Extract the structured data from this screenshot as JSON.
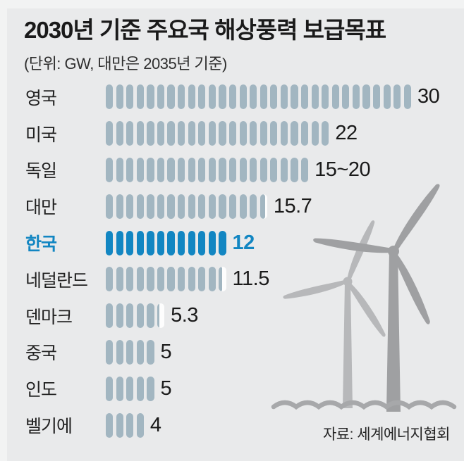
{
  "header": {
    "title": "2030년 기준 주요국 해상풍력 보급목표",
    "subtitle": "(단위: GW, 대만은 2035년 기준)"
  },
  "footer": {
    "source": "자료: 세계에너지협회"
  },
  "colors": {
    "background": "#e9eaeb",
    "frame": "#f2f3f3",
    "pill": "#a2b6c1",
    "accent": "#1286c2",
    "pill_remainder": "#fdfdfd",
    "text": "#1a1a1a",
    "turbine_front": "#9fa0a2",
    "turbine_back": "#b7b8ba",
    "water": "#a7a8aa"
  },
  "chart_data": {
    "type": "bar",
    "orientation": "horizontal",
    "style": "pictogram (1 pill = 1 GW)",
    "title": "2030년 기준 주요국 해상풍력 보급목표",
    "unit_note": "(단위: GW, 대만은 2035년 기준)",
    "source": "자료: 세계에너지협회",
    "unit": "GW",
    "categories": [
      "영국",
      "미국",
      "독일",
      "대만",
      "한국",
      "네덜란드",
      "덴마크",
      "중국",
      "인도",
      "벨기에"
    ],
    "values": [
      30,
      22,
      20,
      15.7,
      12,
      11.5,
      5.3,
      5,
      5,
      4
    ],
    "value_labels": [
      "30",
      "22",
      "15~20",
      "15.7",
      "12",
      "11.5",
      "5.3",
      "5",
      "5",
      "4"
    ],
    "highlight_category": "한국",
    "rows": [
      {
        "country": "영국",
        "value_label": "30",
        "pills_full": 30,
        "pill_fraction": 0,
        "highlight": false
      },
      {
        "country": "미국",
        "value_label": "22",
        "pills_full": 22,
        "pill_fraction": 0,
        "highlight": false
      },
      {
        "country": "독일",
        "value_label": "15~20",
        "pills_full": 20,
        "pill_fraction": 0,
        "highlight": false
      },
      {
        "country": "대만",
        "value_label": "15.7",
        "pills_full": 15,
        "pill_fraction": 0.7,
        "highlight": false
      },
      {
        "country": "한국",
        "value_label": "12",
        "pills_full": 12,
        "pill_fraction": 0,
        "highlight": true
      },
      {
        "country": "네덜란드",
        "value_label": "11.5",
        "pills_full": 11,
        "pill_fraction": 0.5,
        "highlight": false
      },
      {
        "country": "덴마크",
        "value_label": "5.3",
        "pills_full": 5,
        "pill_fraction": 0.3,
        "highlight": false
      },
      {
        "country": "중국",
        "value_label": "5",
        "pills_full": 5,
        "pill_fraction": 0,
        "highlight": false
      },
      {
        "country": "인도",
        "value_label": "5",
        "pills_full": 5,
        "pill_fraction": 0,
        "highlight": false
      },
      {
        "country": "벨기에",
        "value_label": "4",
        "pills_full": 4,
        "pill_fraction": 0,
        "highlight": false
      }
    ]
  }
}
